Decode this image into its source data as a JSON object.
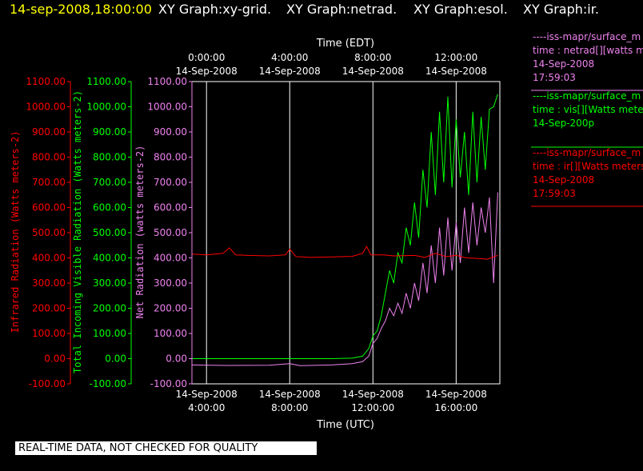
{
  "header": {
    "datetime": "14-sep-2008,18:00:00",
    "tabs": [
      "XY Graph:xy-grid.",
      "XY Graph:netrad.",
      "XY Graph:esol.",
      "XY Graph:ir."
    ]
  },
  "colors": {
    "background": "#000000",
    "axes": "#ffffff",
    "infrared": "#ff0000",
    "visible": "#00ff00",
    "net": "#ee82ee",
    "header_date": "#ffff00"
  },
  "chart_data": {
    "type": "line",
    "x_top_label": "Time (EDT)",
    "x_bottom_label": "Time (UTC)",
    "x_range_utc_hours": [
      3.3,
      18.1
    ],
    "grid": "vertical lines at 4-hour intervals",
    "top_ticks": [
      {
        "x": 4,
        "line1": "0:00:00",
        "line2": "14-Sep-2008"
      },
      {
        "x": 8,
        "line1": "4:00:00",
        "line2": "14-Sep-2008"
      },
      {
        "x": 12,
        "line1": "8:00:00",
        "line2": "14-Sep-2008"
      },
      {
        "x": 16,
        "line1": "12:00:00",
        "line2": "14-Sep-2008"
      }
    ],
    "bottom_ticks": [
      {
        "x": 4,
        "line1": "14-Sep-2008",
        "line2": "4:00:00"
      },
      {
        "x": 8,
        "line1": "14-Sep-2008",
        "line2": "8:00:00"
      },
      {
        "x": 12,
        "line1": "14-Sep-2008",
        "line2": "12:00:00"
      },
      {
        "x": 16,
        "line1": "14-Sep-2008",
        "line2": "16:00:00"
      }
    ],
    "y_axes": [
      {
        "id": "infrared",
        "label": "Infrared Radiation (Watts meters-2)",
        "range": [
          -100,
          1100
        ],
        "ticks": [
          "1100.00",
          "1000.00",
          "900.00",
          "800.00",
          "700.00",
          "600.00",
          "500.00",
          "400.00",
          "300.00",
          "200.00",
          "100.00",
          "0.00",
          "-100.00"
        ]
      },
      {
        "id": "visible",
        "label": "Total Incoming Visible Radiation (Watts meters-2)",
        "range": [
          -100,
          1100
        ],
        "ticks": [
          "1100.00",
          "1000.00",
          "900.00",
          "800.00",
          "700.00",
          "600.00",
          "500.00",
          "400.00",
          "300.00",
          "200.00",
          "100.00",
          "0.00",
          "-100.00"
        ]
      },
      {
        "id": "net",
        "label": "Net Radiation (watts meters-2)",
        "range": [
          -100,
          1100
        ],
        "ticks": [
          "1100.00",
          "1000.00",
          "900.00",
          "800.00",
          "700.00",
          "600.00",
          "500.00",
          "400.00",
          "300.00",
          "200.00",
          "100.00",
          "0.00",
          "-100.00"
        ]
      }
    ],
    "series": [
      {
        "id": "visible",
        "points": [
          [
            3.3,
            0
          ],
          [
            5,
            0
          ],
          [
            7,
            0
          ],
          [
            9,
            0
          ],
          [
            10,
            0
          ],
          [
            11,
            2
          ],
          [
            11.5,
            10
          ],
          [
            11.8,
            40
          ],
          [
            12,
            90
          ],
          [
            12.2,
            110
          ],
          [
            12.4,
            170
          ],
          [
            12.6,
            260
          ],
          [
            12.8,
            350
          ],
          [
            13,
            300
          ],
          [
            13.2,
            420
          ],
          [
            13.4,
            380
          ],
          [
            13.6,
            520
          ],
          [
            13.8,
            450
          ],
          [
            14,
            620
          ],
          [
            14.2,
            480
          ],
          [
            14.4,
            750
          ],
          [
            14.6,
            600
          ],
          [
            14.8,
            900
          ],
          [
            15,
            650
          ],
          [
            15.2,
            980
          ],
          [
            15.4,
            700
          ],
          [
            15.6,
            1040
          ],
          [
            15.8,
            680
          ],
          [
            16,
            950
          ],
          [
            16.2,
            720
          ],
          [
            16.4,
            900
          ],
          [
            16.6,
            650
          ],
          [
            16.8,
            980
          ],
          [
            17,
            700
          ],
          [
            17.2,
            960
          ],
          [
            17.4,
            750
          ],
          [
            17.6,
            990
          ],
          [
            17.8,
            1000
          ],
          [
            18,
            1050
          ]
        ]
      },
      {
        "id": "net",
        "points": [
          [
            3.3,
            -25
          ],
          [
            5,
            -27
          ],
          [
            7,
            -26
          ],
          [
            8,
            -20
          ],
          [
            8.5,
            -28
          ],
          [
            10,
            -25
          ],
          [
            11,
            -20
          ],
          [
            11.5,
            -12
          ],
          [
            11.8,
            10
          ],
          [
            12,
            60
          ],
          [
            12.2,
            80
          ],
          [
            12.4,
            120
          ],
          [
            12.6,
            150
          ],
          [
            12.8,
            200
          ],
          [
            13,
            170
          ],
          [
            13.2,
            220
          ],
          [
            13.4,
            180
          ],
          [
            13.6,
            260
          ],
          [
            13.8,
            200
          ],
          [
            14,
            300
          ],
          [
            14.2,
            230
          ],
          [
            14.4,
            380
          ],
          [
            14.6,
            260
          ],
          [
            14.8,
            450
          ],
          [
            15,
            300
          ],
          [
            15.2,
            520
          ],
          [
            15.4,
            330
          ],
          [
            15.6,
            560
          ],
          [
            15.8,
            350
          ],
          [
            16,
            540
          ],
          [
            16.2,
            380
          ],
          [
            16.4,
            600
          ],
          [
            16.6,
            420
          ],
          [
            16.8,
            620
          ],
          [
            17,
            450
          ],
          [
            17.2,
            600
          ],
          [
            17.4,
            500
          ],
          [
            17.6,
            640
          ],
          [
            17.8,
            300
          ],
          [
            18,
            660
          ]
        ]
      },
      {
        "id": "infrared",
        "points": [
          [
            3.3,
            415
          ],
          [
            4,
            412
          ],
          [
            4.8,
            418
          ],
          [
            5.1,
            440
          ],
          [
            5.4,
            412
          ],
          [
            6,
            410
          ],
          [
            7,
            408
          ],
          [
            7.8,
            412
          ],
          [
            8,
            435
          ],
          [
            8.3,
            405
          ],
          [
            9,
            402
          ],
          [
            10,
            404
          ],
          [
            11,
            406
          ],
          [
            11.5,
            418
          ],
          [
            11.7,
            445
          ],
          [
            11.9,
            412
          ],
          [
            12.5,
            412
          ],
          [
            13,
            408
          ],
          [
            14,
            410
          ],
          [
            14.5,
            402
          ],
          [
            15,
            418
          ],
          [
            15.5,
            405
          ],
          [
            16,
            410
          ],
          [
            16.5,
            400
          ],
          [
            17,
            398
          ],
          [
            17.5,
            395
          ],
          [
            18,
            410
          ]
        ]
      }
    ]
  },
  "legend": [
    {
      "series": "net",
      "lines": [
        "----iss-mapr/surface_m",
        "time : netrad[][watts m",
        "14-Sep-2008",
        "17:59:03"
      ]
    },
    {
      "series": "visible",
      "lines": [
        "----iss-mapr/surface_m",
        "time : vis[][Watts mete",
        "14-Sep-200p"
      ]
    },
    {
      "series": "infrared",
      "lines": [
        "----iss-mapr/surface_m",
        "time : ir[][Watts meters",
        "14-Sep-2008",
        "17:59:03"
      ]
    }
  ],
  "footer": {
    "note": "REAL-TIME DATA, NOT CHECKED FOR QUALITY"
  }
}
